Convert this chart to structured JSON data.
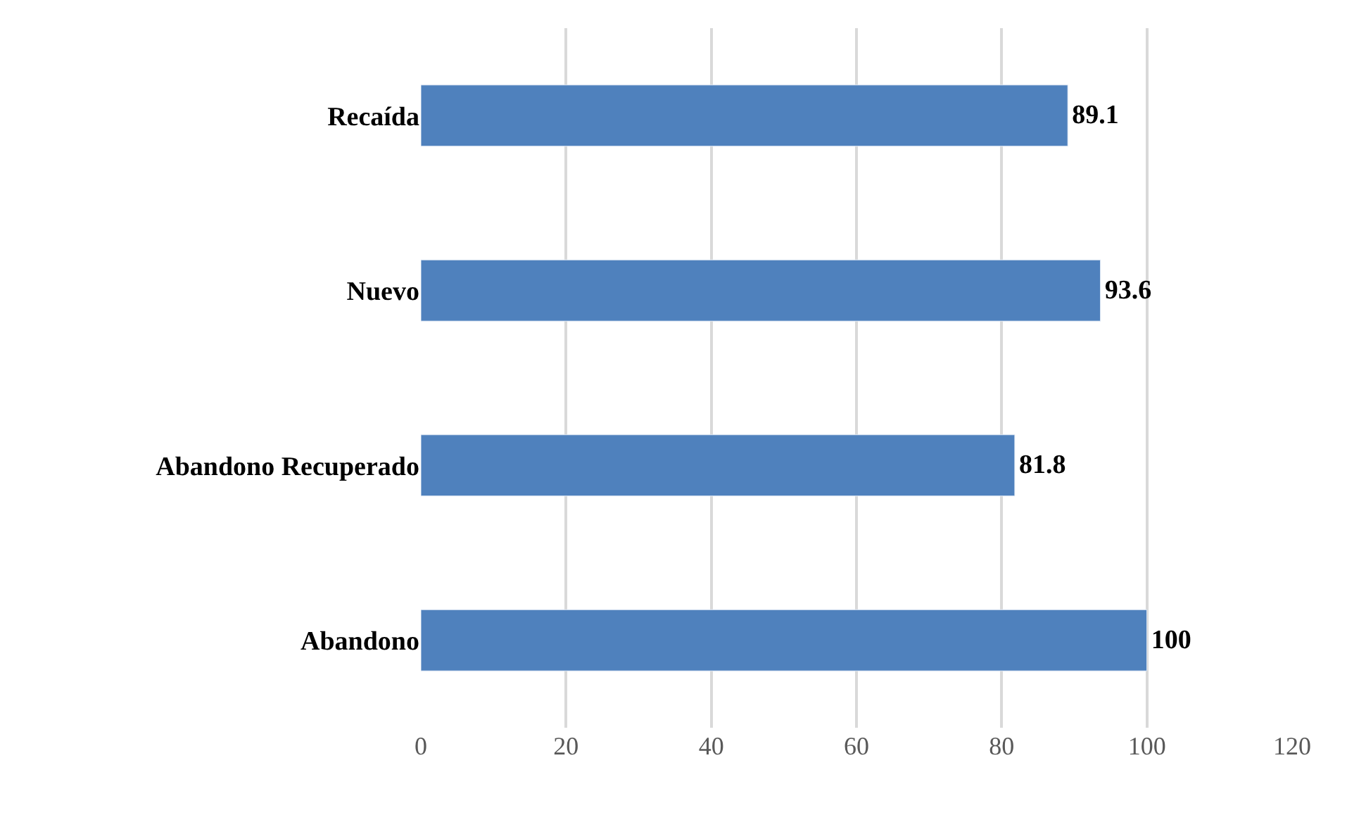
{
  "chart_data": {
    "type": "bar",
    "orientation": "horizontal",
    "categories": [
      "Recaída",
      "Nuevo",
      "Abandono Recuperado",
      "Abandono"
    ],
    "values": [
      89.1,
      93.6,
      81.8,
      100
    ],
    "color": "#4f81bd",
    "xlim": [
      0,
      120
    ],
    "xticks": [
      0,
      20,
      40,
      60,
      80,
      100,
      120
    ],
    "grid": "x",
    "data_labels": true,
    "legend": false
  }
}
